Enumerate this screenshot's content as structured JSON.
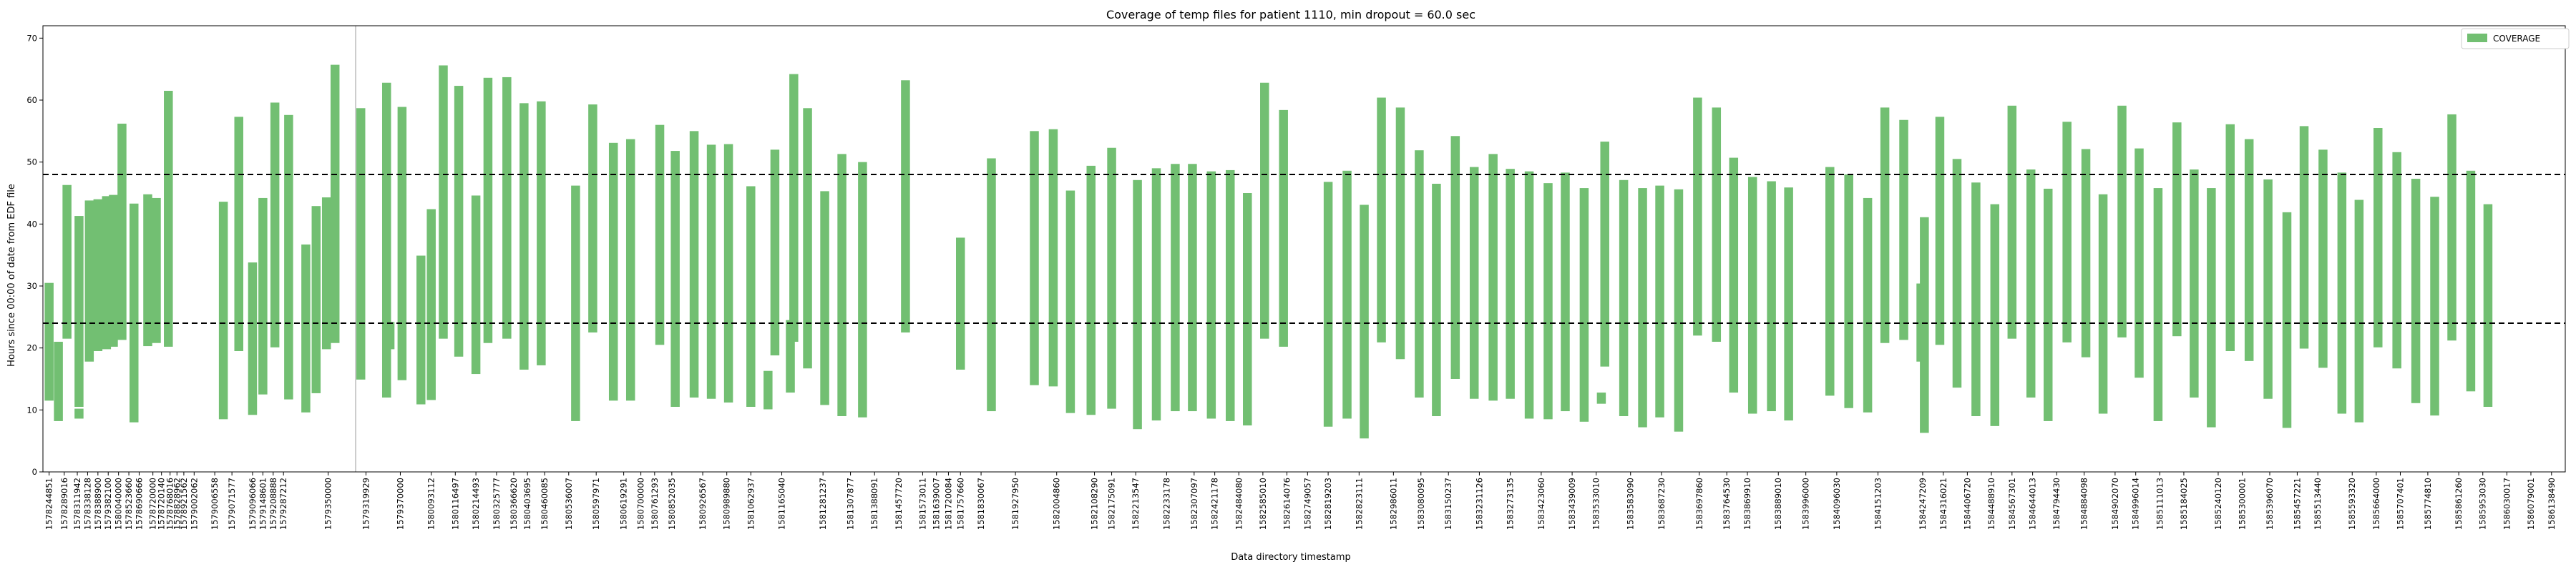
{
  "chart_data": {
    "type": "bar",
    "title": "Coverage of temp files for patient 1110, min dropout = 60.0 sec",
    "xlabel": "Data directory timestamp",
    "ylabel": "Hours since 00:00 of date from EDF file",
    "ylim": [
      0,
      72
    ],
    "yticks": [
      0,
      10,
      20,
      30,
      40,
      50,
      60,
      70
    ],
    "legend": {
      "label": "COVERAGE",
      "position": "top-right",
      "color": "#72bf72"
    },
    "hlines": [
      48,
      24
    ],
    "vline_x": 1580066464,
    "bar_color": "#72bf72",
    "bar_width_seconds": 12800,
    "xlim": [
      1582000,
      1604320000
    ],
    "tick_labels": [
      "1578244851",
      "1578289016",
      "1578311942",
      "1578338128",
      "1578388900",
      "1579382100",
      "1580040000",
      "1578523660",
      "1578690666",
      "1578720000",
      "1578720140",
      "1578768016",
      "1578828962",
      "1578921562",
      "1579002062",
      "1579006558",
      "1579071577",
      "1579096066",
      "1579148601",
      "1579208888",
      "1579287212",
      "1579350000",
      "1579319929",
      "1579370000",
      "1580093112",
      "1580116497",
      "1580214493",
      "1580325777",
      "1580366620",
      "1580403695",
      "1580460085",
      "1580536007",
      "1580597971",
      "1580619291",
      "1580700000",
      "1580761293",
      "1580852035",
      "1580926567",
      "1580989880",
      "1581062937",
      "1581165040",
      "1581281237",
      "1581307877",
      "1581388091",
      "1581457720",
      "1581573011",
      "1581639007",
      "1581720084",
      "1581757660",
      "1581830067",
      "1581927950",
      "1582004860",
      "1582108290",
      "1582175091",
      "1582213547",
      "1582233178",
      "1582307097",
      "1582421178",
      "1582484080",
      "1582585010",
      "1582614076",
      "1582749057",
      "1582819203",
      "1582823111",
      "1582986011",
      "1583080095",
      "1583150237",
      "1583231126",
      "1583273135",
      "1583423060",
      "1583439009",
      "1583533010",
      "1583583090",
      "1583687230",
      "1583697860",
      "1583764530",
      "1583869910",
      "1583889010",
      "1583996000",
      "1584096030",
      "1584151203",
      "1584247209",
      "1584316021",
      "1584406720",
      "1584488910",
      "1584567301",
      "1584644013",
      "1584794430",
      "1584884098",
      "1584902070",
      "1584996014",
      "1585111013",
      "1585184025",
      "1585240120",
      "1585300001",
      "1585396070",
      "1585457221",
      "1585513440",
      "1585593320",
      "1585664000",
      "1585707401",
      "1585774810",
      "1585861260",
      "1585953030",
      "1586030017",
      "1586079001",
      "1586138490"
    ],
    "tick_positions": [
      0.18,
      0.62,
      1.0,
      1.3,
      1.6,
      1.9,
      2.2,
      2.5,
      2.8,
      3.2,
      3.45,
      3.7,
      3.9,
      4.1,
      4.4,
      5.0,
      5.5,
      6.1,
      6.4,
      6.7,
      7.0,
      8.3,
      9.4,
      10.4,
      11.3,
      12.0,
      12.6,
      13.2,
      13.7,
      14.1,
      14.6,
      15.3,
      16.1,
      16.9,
      17.4,
      17.8,
      18.3,
      19.2,
      19.9,
      20.6,
      21.5,
      22.7,
      23.5,
      24.2,
      24.9,
      25.6,
      26.0,
      26.35,
      26.7,
      27.3,
      28.3,
      29.5,
      30.6,
      31.1,
      31.8,
      32.7,
      33.5,
      34.1,
      34.8,
      35.5,
      36.2,
      36.8,
      37.4,
      38.3,
      39.3,
      40.1,
      40.9,
      41.8,
      42.7,
      43.6,
      44.5,
      45.2,
      46.2,
      47.1,
      48.2,
      49.0,
      49.6,
      50.5,
      51.3,
      52.2,
      53.4,
      54.7,
      55.3,
      56.0,
      56.7,
      57.3,
      57.9,
      58.6,
      59.4,
      60.3,
      60.9,
      61.6,
      62.3,
      63.3,
      64.0,
      64.8,
      65.6,
      66.2,
      67.2,
      67.9,
      68.6,
      69.4,
      70.3,
      71.0,
      71.7,
      72.4,
      73.0
    ],
    "bars": [
      {
        "x": 0.18,
        "low": 11.5,
        "high": 30.5
      },
      {
        "x": 0.45,
        "low": 8.2,
        "high": 21.0
      },
      {
        "x": 0.7,
        "low": 21.5,
        "high": 46.3
      },
      {
        "x": 1.05,
        "low": 10.5,
        "high": 41.3
      },
      {
        "x": 1.05,
        "low": 8.6,
        "high": 10.2
      },
      {
        "x": 1.35,
        "low": 17.8,
        "high": 43.8
      },
      {
        "x": 1.6,
        "low": 19.5,
        "high": 44.0
      },
      {
        "x": 1.85,
        "low": 19.8,
        "high": 44.5
      },
      {
        "x": 2.05,
        "low": 20.2,
        "high": 44.7
      },
      {
        "x": 2.3,
        "low": 21.3,
        "high": 56.2
      },
      {
        "x": 2.65,
        "low": 8.0,
        "high": 43.3
      },
      {
        "x": 3.05,
        "low": 20.3,
        "high": 44.8
      },
      {
        "x": 3.3,
        "low": 20.8,
        "high": 44.2
      },
      {
        "x": 3.65,
        "low": 20.2,
        "high": 61.5
      },
      {
        "x": 5.25,
        "low": 8.5,
        "high": 43.6
      },
      {
        "x": 5.7,
        "low": 19.5,
        "high": 57.3
      },
      {
        "x": 6.1,
        "low": 9.2,
        "high": 33.8
      },
      {
        "x": 6.4,
        "low": 12.5,
        "high": 44.2
      },
      {
        "x": 6.75,
        "low": 20.1,
        "high": 59.6
      },
      {
        "x": 7.15,
        "low": 11.7,
        "high": 57.6
      },
      {
        "x": 7.65,
        "low": 9.6,
        "high": 36.7
      },
      {
        "x": 7.95,
        "low": 12.7,
        "high": 42.9
      },
      {
        "x": 8.25,
        "low": 19.8,
        "high": 44.3
      },
      {
        "x": 8.5,
        "low": 20.8,
        "high": 65.7
      },
      {
        "x": 9.25,
        "low": 14.9,
        "high": 58.7
      },
      {
        "x": 10.0,
        "low": 12.0,
        "high": 62.8
      },
      {
        "x": 10.1,
        "low": 19.8,
        "high": 24.2
      },
      {
        "x": 10.45,
        "low": 14.8,
        "high": 58.9
      },
      {
        "x": 11.0,
        "low": 10.9,
        "high": 34.9
      },
      {
        "x": 11.3,
        "low": 11.6,
        "high": 42.4
      },
      {
        "x": 11.65,
        "low": 21.5,
        "high": 65.6
      },
      {
        "x": 12.1,
        "low": 18.6,
        "high": 62.3
      },
      {
        "x": 12.6,
        "low": 15.8,
        "high": 44.6
      },
      {
        "x": 12.95,
        "low": 20.8,
        "high": 63.6
      },
      {
        "x": 13.5,
        "low": 21.5,
        "high": 63.7
      },
      {
        "x": 14.0,
        "low": 16.5,
        "high": 59.5
      },
      {
        "x": 14.5,
        "low": 17.2,
        "high": 59.8
      },
      {
        "x": 15.5,
        "low": 8.2,
        "high": 46.2
      },
      {
        "x": 16.0,
        "low": 22.5,
        "high": 59.3
      },
      {
        "x": 16.6,
        "low": 11.5,
        "high": 53.1
      },
      {
        "x": 17.1,
        "low": 11.5,
        "high": 53.7
      },
      {
        "x": 17.95,
        "low": 20.5,
        "high": 56.0
      },
      {
        "x": 18.4,
        "low": 10.5,
        "high": 51.8
      },
      {
        "x": 18.95,
        "low": 12.0,
        "high": 55.0
      },
      {
        "x": 19.45,
        "low": 11.8,
        "high": 52.8
      },
      {
        "x": 19.95,
        "low": 11.2,
        "high": 52.9
      },
      {
        "x": 20.6,
        "low": 10.5,
        "high": 46.1
      },
      {
        "x": 21.1,
        "low": 10.1,
        "high": 16.3
      },
      {
        "x": 21.3,
        "low": 18.8,
        "high": 52.0
      },
      {
        "x": 21.75,
        "low": 12.8,
        "high": 24.5
      },
      {
        "x": 21.85,
        "low": 21.0,
        "high": 64.2
      },
      {
        "x": 22.25,
        "low": 16.7,
        "high": 58.7
      },
      {
        "x": 22.75,
        "low": 10.8,
        "high": 45.3
      },
      {
        "x": 23.25,
        "low": 9.0,
        "high": 51.3
      },
      {
        "x": 23.85,
        "low": 8.8,
        "high": 50.0
      },
      {
        "x": 25.1,
        "low": 22.5,
        "high": 63.2
      },
      {
        "x": 26.7,
        "low": 16.5,
        "high": 37.8
      },
      {
        "x": 27.6,
        "low": 9.8,
        "high": 50.6
      },
      {
        "x": 28.85,
        "low": 14.0,
        "high": 55.0
      },
      {
        "x": 29.4,
        "low": 13.8,
        "high": 55.3
      },
      {
        "x": 29.9,
        "low": 9.5,
        "high": 45.4
      },
      {
        "x": 30.5,
        "low": 9.2,
        "high": 49.4
      },
      {
        "x": 31.1,
        "low": 10.2,
        "high": 52.3
      },
      {
        "x": 31.85,
        "low": 6.9,
        "high": 47.1
      },
      {
        "x": 32.4,
        "low": 8.3,
        "high": 49.0
      },
      {
        "x": 32.95,
        "low": 9.8,
        "high": 49.7
      },
      {
        "x": 33.45,
        "low": 9.8,
        "high": 49.7
      },
      {
        "x": 34.0,
        "low": 8.6,
        "high": 48.5
      },
      {
        "x": 34.55,
        "low": 8.2,
        "high": 48.7
      },
      {
        "x": 35.05,
        "low": 7.5,
        "high": 45.0
      },
      {
        "x": 35.55,
        "low": 21.5,
        "high": 62.8
      },
      {
        "x": 36.1,
        "low": 20.2,
        "high": 58.4
      },
      {
        "x": 37.4,
        "low": 7.3,
        "high": 46.8
      },
      {
        "x": 37.95,
        "low": 8.6,
        "high": 48.6
      },
      {
        "x": 38.45,
        "low": 5.4,
        "high": 43.1
      },
      {
        "x": 38.95,
        "low": 20.9,
        "high": 60.4
      },
      {
        "x": 39.5,
        "low": 18.2,
        "high": 58.8
      },
      {
        "x": 40.05,
        "low": 12.0,
        "high": 51.9
      },
      {
        "x": 40.55,
        "low": 9.0,
        "high": 46.5
      },
      {
        "x": 41.1,
        "low": 15.0,
        "high": 54.2
      },
      {
        "x": 41.65,
        "low": 11.8,
        "high": 49.2
      },
      {
        "x": 42.2,
        "low": 11.5,
        "high": 51.3
      },
      {
        "x": 42.7,
        "low": 11.8,
        "high": 48.9
      },
      {
        "x": 43.25,
        "low": 8.6,
        "high": 48.5
      },
      {
        "x": 43.8,
        "low": 8.5,
        "high": 46.6
      },
      {
        "x": 44.3,
        "low": 9.8,
        "high": 48.3
      },
      {
        "x": 44.85,
        "low": 8.1,
        "high": 45.8
      },
      {
        "x": 45.35,
        "low": 11.0,
        "high": 12.8
      },
      {
        "x": 45.45,
        "low": 17.0,
        "high": 53.3
      },
      {
        "x": 46.0,
        "low": 9.0,
        "high": 47.1
      },
      {
        "x": 46.55,
        "low": 7.2,
        "high": 45.8
      },
      {
        "x": 47.05,
        "low": 8.8,
        "high": 46.2
      },
      {
        "x": 47.6,
        "low": 6.5,
        "high": 45.6
      },
      {
        "x": 48.15,
        "low": 22.0,
        "high": 60.4
      },
      {
        "x": 48.7,
        "low": 21.0,
        "high": 58.8
      },
      {
        "x": 49.2,
        "low": 12.8,
        "high": 50.7
      },
      {
        "x": 49.75,
        "low": 9.4,
        "high": 47.6
      },
      {
        "x": 50.3,
        "low": 9.8,
        "high": 46.9
      },
      {
        "x": 50.8,
        "low": 8.3,
        "high": 45.9
      },
      {
        "x": 52.0,
        "low": 12.3,
        "high": 49.2
      },
      {
        "x": 52.55,
        "low": 10.3,
        "high": 48.0
      },
      {
        "x": 53.1,
        "low": 9.6,
        "high": 44.2
      },
      {
        "x": 53.6,
        "low": 20.8,
        "high": 58.8
      },
      {
        "x": 54.15,
        "low": 21.3,
        "high": 56.8
      },
      {
        "x": 54.65,
        "low": 17.8,
        "high": 30.4
      },
      {
        "x": 54.75,
        "low": 6.3,
        "high": 41.1
      },
      {
        "x": 55.2,
        "low": 20.5,
        "high": 57.3
      },
      {
        "x": 55.7,
        "low": 13.6,
        "high": 50.5
      },
      {
        "x": 56.25,
        "low": 9.0,
        "high": 46.7
      },
      {
        "x": 56.8,
        "low": 7.4,
        "high": 43.2
      },
      {
        "x": 57.3,
        "low": 21.5,
        "high": 59.1
      },
      {
        "x": 57.85,
        "low": 12.0,
        "high": 48.8
      },
      {
        "x": 58.35,
        "low": 8.2,
        "high": 45.7
      },
      {
        "x": 58.9,
        "low": 20.9,
        "high": 56.5
      },
      {
        "x": 59.45,
        "low": 18.5,
        "high": 52.1
      },
      {
        "x": 59.95,
        "low": 9.4,
        "high": 44.8
      },
      {
        "x": 60.5,
        "low": 21.7,
        "high": 59.1
      },
      {
        "x": 61.0,
        "low": 15.2,
        "high": 52.2
      },
      {
        "x": 61.55,
        "low": 8.2,
        "high": 45.8
      },
      {
        "x": 62.1,
        "low": 21.9,
        "high": 56.4
      },
      {
        "x": 62.6,
        "low": 12.0,
        "high": 48.8
      },
      {
        "x": 63.1,
        "low": 7.2,
        "high": 45.8
      },
      {
        "x": 63.65,
        "low": 19.5,
        "high": 56.1
      },
      {
        "x": 64.2,
        "low": 17.9,
        "high": 53.7
      },
      {
        "x": 64.75,
        "low": 11.8,
        "high": 47.2
      },
      {
        "x": 65.3,
        "low": 7.1,
        "high": 41.9
      },
      {
        "x": 65.8,
        "low": 19.9,
        "high": 55.8
      },
      {
        "x": 66.35,
        "low": 16.8,
        "high": 52.0
      },
      {
        "x": 66.9,
        "low": 9.4,
        "high": 48.3
      },
      {
        "x": 67.4,
        "low": 8.0,
        "high": 43.9
      },
      {
        "x": 67.95,
        "low": 20.1,
        "high": 55.5
      },
      {
        "x": 68.5,
        "low": 16.7,
        "high": 51.6
      },
      {
        "x": 69.05,
        "low": 11.1,
        "high": 47.3
      },
      {
        "x": 69.6,
        "low": 9.1,
        "high": 44.4
      },
      {
        "x": 70.1,
        "low": 21.2,
        "high": 57.7
      },
      {
        "x": 70.65,
        "low": 13.0,
        "high": 48.6
      },
      {
        "x": 71.15,
        "low": 10.5,
        "high": 43.2
      }
    ]
  }
}
